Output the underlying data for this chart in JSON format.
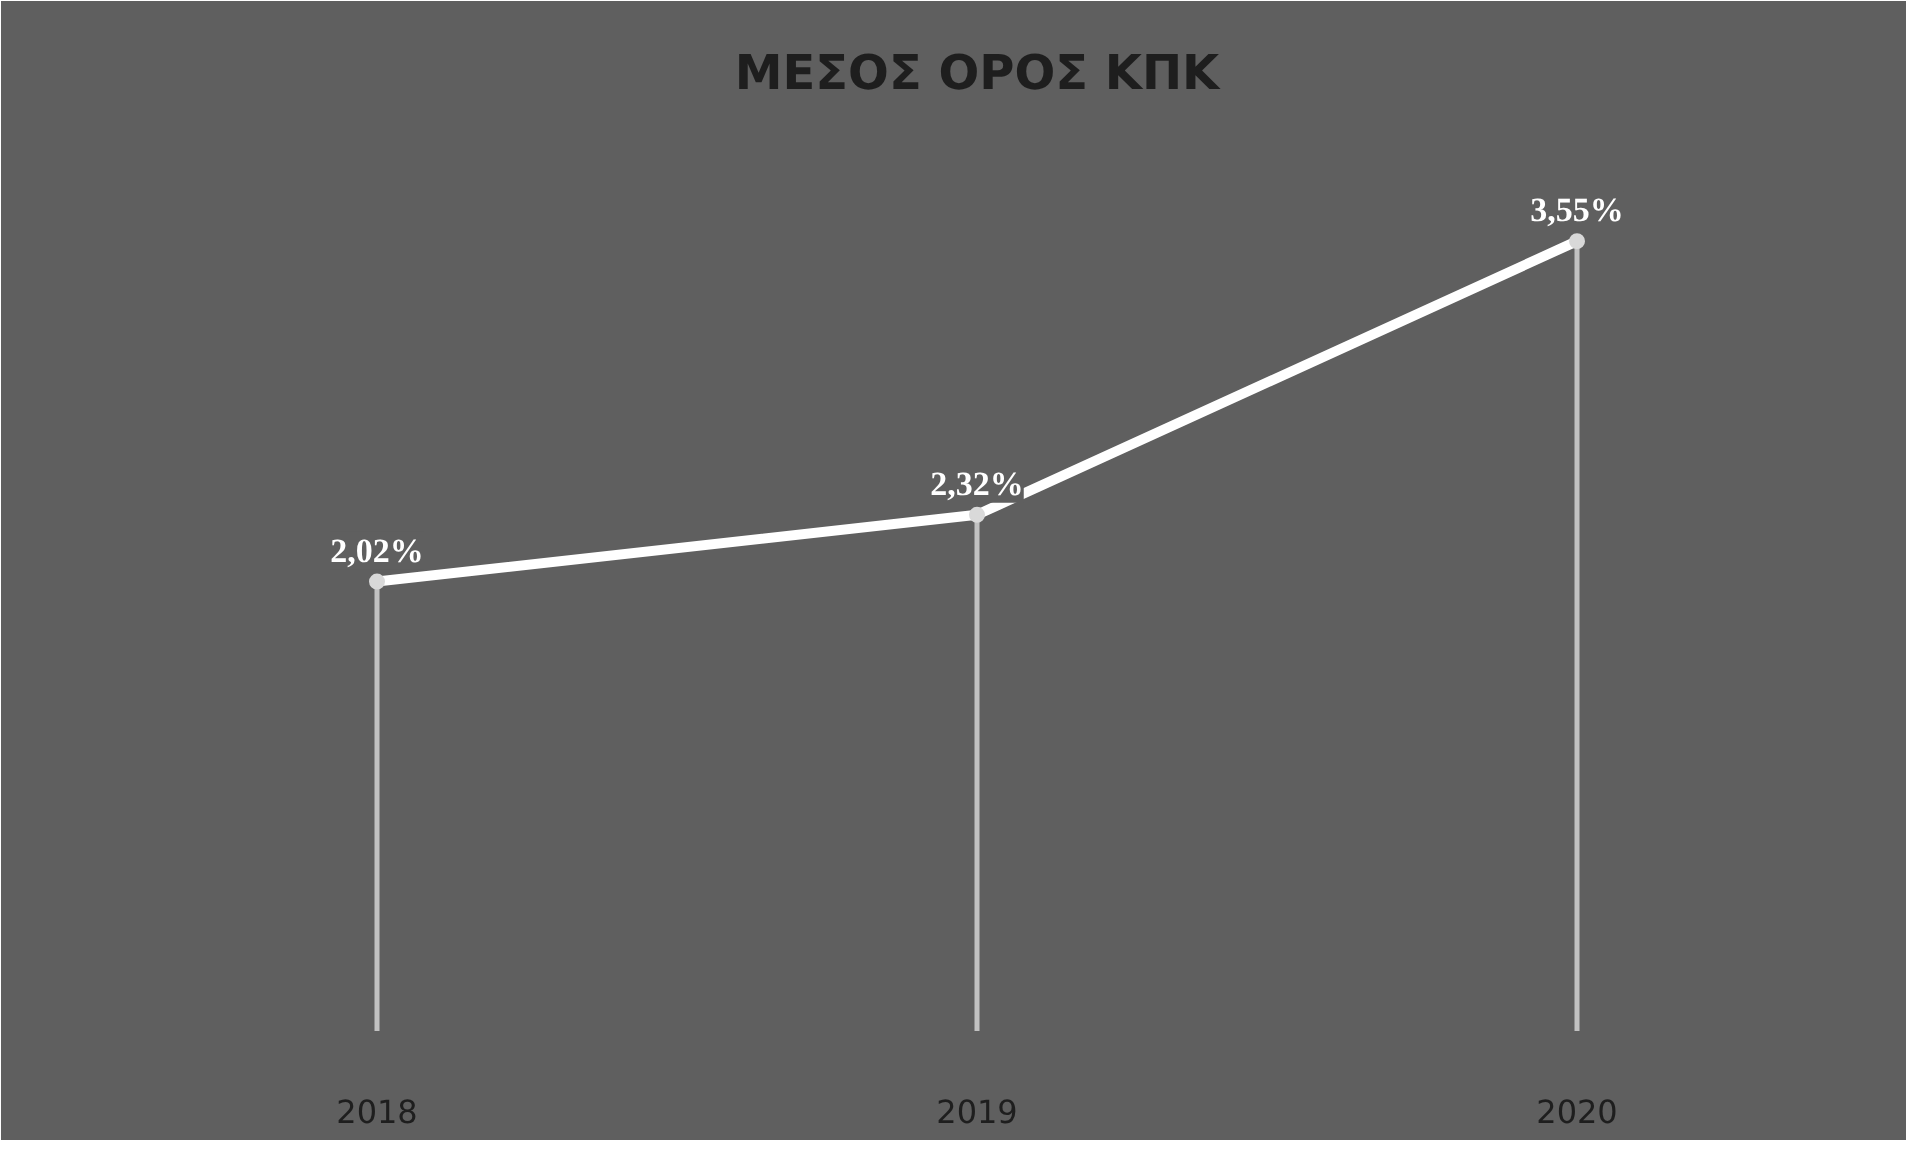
{
  "chart_data": {
    "type": "line",
    "title": "ΜΕΣΟΣ ΟΡΟΣ ΚΠΚ",
    "categories": [
      "2018",
      "2019",
      "2020"
    ],
    "series": [
      {
        "color": "#ffffff",
        "values": [
          2.02,
          2.32,
          3.55
        ],
        "value_labels": [
          "2,02%",
          "2,32%",
          "3,55%"
        ]
      },
      {
        "type": "lollipop",
        "marker": "circle",
        "color": "#d9d9d9",
        "values": [
          2.02,
          2.32,
          3.55
        ]
      }
    ],
    "ylim": [
      0,
      4
    ],
    "line_style": "solid",
    "tick_labels": "x"
  }
}
